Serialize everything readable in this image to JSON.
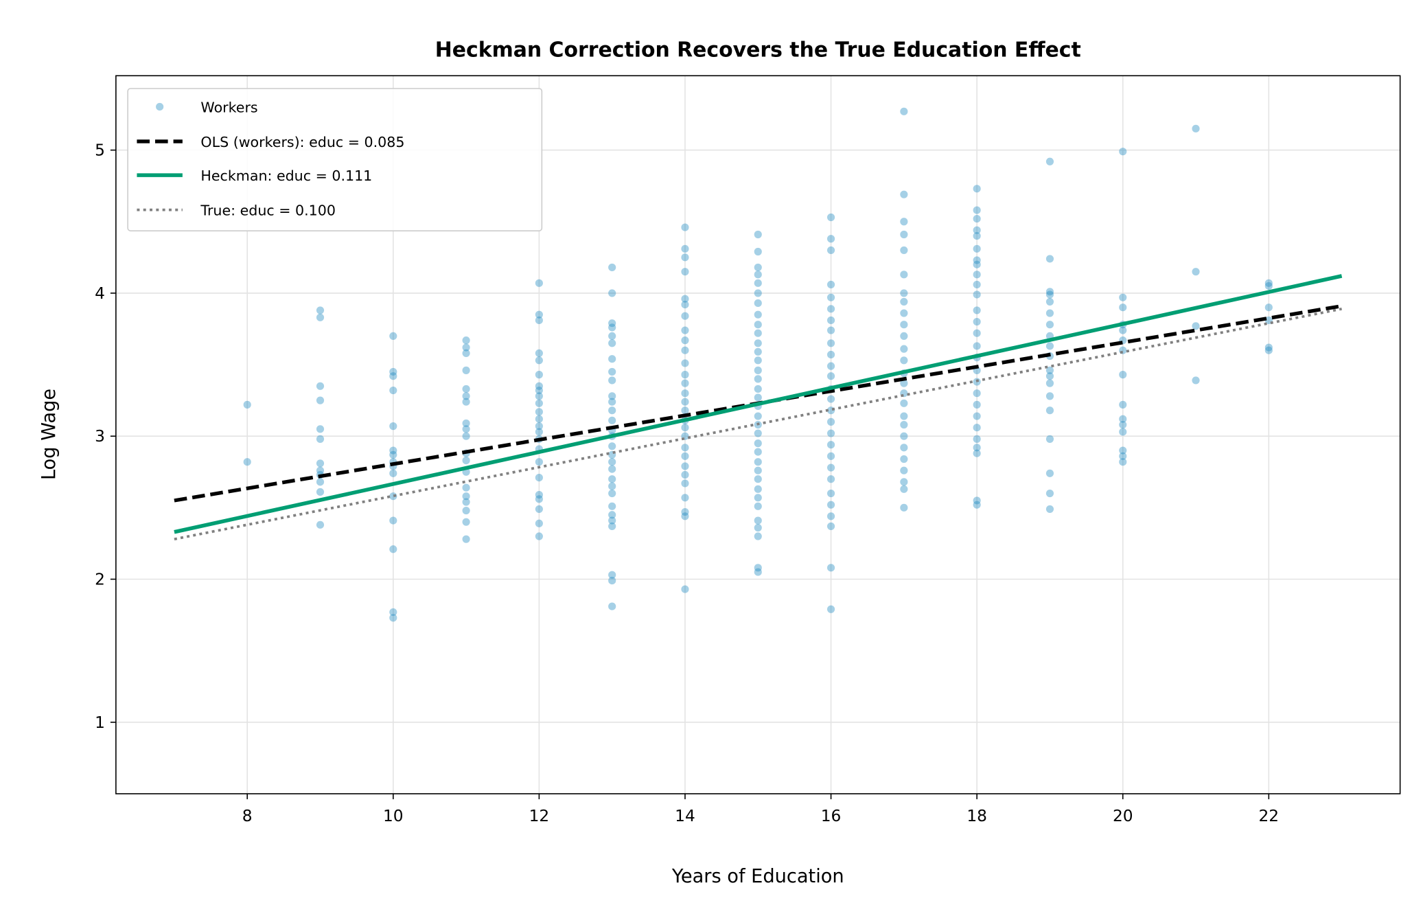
{
  "chart_data": {
    "type": "scatter",
    "title": "Heckman Correction Recovers the True Education Effect",
    "xlabel": "Years of Education",
    "ylabel": "Log Wage",
    "xlim": [
      6.2,
      23.8
    ],
    "ylim": [
      0.5,
      5.52
    ],
    "xticks": [
      8,
      10,
      12,
      14,
      16,
      18,
      20,
      22
    ],
    "yticks": [
      1,
      2,
      3,
      4,
      5
    ],
    "grid": true,
    "legend_position": "top-left",
    "scatter": {
      "name": "Workers",
      "color": "#1f8ac0",
      "points": [
        {
          "x": 8,
          "y": [
            3.22,
            2.82
          ]
        },
        {
          "x": 9,
          "y": [
            3.88,
            3.83,
            3.35,
            3.25,
            3.05,
            2.98,
            2.81,
            2.76,
            2.73,
            2.68,
            2.61,
            2.38
          ]
        },
        {
          "x": 10,
          "y": [
            3.7,
            3.45,
            3.42,
            3.32,
            3.07,
            2.9,
            2.87,
            2.82,
            2.79,
            2.74,
            2.58,
            2.41,
            2.21,
            1.77,
            1.73
          ]
        },
        {
          "x": 11,
          "y": [
            3.67,
            3.62,
            3.58,
            3.46,
            3.33,
            3.28,
            3.24,
            3.09,
            3.05,
            3.0,
            2.88,
            2.83,
            2.75,
            2.64,
            2.58,
            2.54,
            2.48,
            2.4,
            2.28
          ]
        },
        {
          "x": 12,
          "y": [
            4.07,
            3.85,
            3.81,
            3.58,
            3.53,
            3.43,
            3.35,
            3.32,
            3.28,
            3.23,
            3.17,
            3.12,
            3.07,
            3.03,
            2.98,
            2.91,
            2.82,
            2.71,
            2.59,
            2.56,
            2.49,
            2.39,
            2.3
          ]
        },
        {
          "x": 13,
          "y": [
            4.18,
            4.0,
            3.79,
            3.76,
            3.7,
            3.65,
            3.54,
            3.45,
            3.39,
            3.28,
            3.24,
            3.18,
            3.11,
            3.04,
            3.0,
            2.93,
            2.87,
            2.82,
            2.77,
            2.7,
            2.65,
            2.6,
            2.51,
            2.45,
            2.41,
            2.37,
            2.03,
            1.99,
            1.81
          ]
        },
        {
          "x": 14,
          "y": [
            4.46,
            4.31,
            4.25,
            4.15,
            3.96,
            3.92,
            3.84,
            3.74,
            3.67,
            3.6,
            3.51,
            3.43,
            3.37,
            3.3,
            3.24,
            3.18,
            3.11,
            3.06,
            3.0,
            2.92,
            2.86,
            2.79,
            2.73,
            2.67,
            2.57,
            2.47,
            2.44,
            1.93
          ]
        },
        {
          "x": 15,
          "y": [
            4.41,
            4.29,
            4.18,
            4.13,
            4.07,
            4.0,
            3.93,
            3.85,
            3.78,
            3.72,
            3.65,
            3.59,
            3.53,
            3.46,
            3.4,
            3.33,
            3.27,
            3.21,
            3.14,
            3.08,
            3.02,
            2.95,
            2.89,
            2.82,
            2.76,
            2.7,
            2.63,
            2.57,
            2.51,
            2.41,
            2.36,
            2.3,
            2.08,
            2.05
          ]
        },
        {
          "x": 16,
          "y": [
            4.53,
            4.38,
            4.3,
            4.06,
            3.97,
            3.89,
            3.81,
            3.74,
            3.65,
            3.57,
            3.49,
            3.42,
            3.33,
            3.26,
            3.18,
            3.1,
            3.02,
            2.94,
            2.86,
            2.78,
            2.7,
            2.6,
            2.52,
            2.44,
            2.37,
            2.08,
            1.79
          ]
        },
        {
          "x": 17,
          "y": [
            5.27,
            4.69,
            4.5,
            4.41,
            4.3,
            4.13,
            4.0,
            3.94,
            3.86,
            3.78,
            3.7,
            3.61,
            3.53,
            3.44,
            3.37,
            3.3,
            3.23,
            3.14,
            3.08,
            3.0,
            2.92,
            2.84,
            2.76,
            2.68,
            2.63,
            2.5
          ]
        },
        {
          "x": 18,
          "y": [
            4.73,
            4.58,
            4.52,
            4.44,
            4.4,
            4.31,
            4.23,
            4.2,
            4.13,
            4.06,
            3.99,
            3.88,
            3.8,
            3.72,
            3.63,
            3.55,
            3.46,
            3.38,
            3.3,
            3.22,
            3.14,
            3.06,
            2.98,
            2.92,
            2.88,
            2.55,
            2.52
          ]
        },
        {
          "x": 19,
          "y": [
            4.92,
            4.24,
            4.01,
            3.99,
            3.94,
            3.86,
            3.78,
            3.7,
            3.63,
            3.56,
            3.46,
            3.42,
            3.37,
            3.28,
            3.18,
            2.98,
            2.74,
            2.6,
            2.49
          ]
        },
        {
          "x": 20,
          "y": [
            4.99,
            3.97,
            3.9,
            3.78,
            3.74,
            3.67,
            3.6,
            3.43,
            3.22,
            3.12,
            3.08,
            3.03,
            2.9,
            2.86,
            2.82
          ]
        },
        {
          "x": 21,
          "y": [
            5.15,
            4.15,
            3.77,
            3.39
          ]
        },
        {
          "x": 22,
          "y": [
            4.07,
            4.05,
            3.9,
            3.81,
            3.62,
            3.6
          ]
        }
      ]
    },
    "series": [
      {
        "name": "OLS (workers): educ = 0.085",
        "style": "dashed",
        "color": "#000000",
        "x": [
          7,
          23
        ],
        "y": [
          2.55,
          3.91
        ]
      },
      {
        "name": "Heckman: educ = 0.111",
        "style": "solid",
        "color": "#009e73",
        "x": [
          7,
          23
        ],
        "y": [
          2.33,
          4.12
        ]
      },
      {
        "name": "True: educ = 0.100",
        "style": "dotted",
        "color": "#808080",
        "x": [
          7,
          23
        ],
        "y": [
          2.28,
          3.89
        ]
      }
    ],
    "legend": [
      "Workers",
      "OLS (workers): educ = 0.085",
      "Heckman: educ = 0.111",
      "True: educ = 0.100"
    ]
  }
}
